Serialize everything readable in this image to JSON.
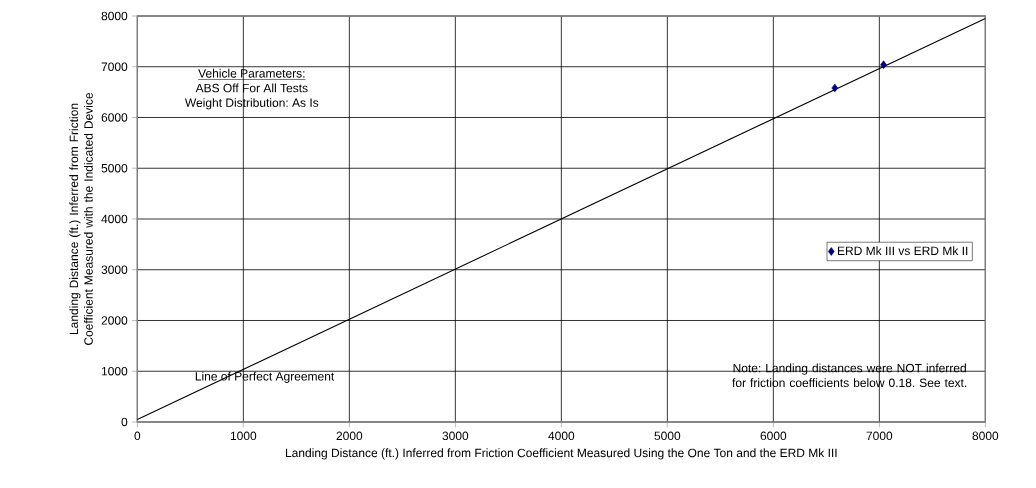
{
  "chart_data": {
    "type": "scatter",
    "xlabel": "Landing Distance (ft.) Inferred from Friction Coefficient Measured Using the One Ton and the ERD Mk III",
    "ylabel": "Landing Distance (ft.) Inferred from Friction Coefficient Measured with the Indicated Device",
    "xlim": [
      0,
      8000
    ],
    "ylim": [
      0,
      8000
    ],
    "xticks": [
      0,
      1000,
      2000,
      3000,
      4000,
      5000,
      6000,
      7000,
      8000
    ],
    "yticks": [
      0,
      1000,
      2000,
      3000,
      4000,
      5000,
      6000,
      7000,
      8000
    ],
    "grid": true,
    "legend": "right",
    "series": [
      {
        "name": "ERD Mk III vs ERD Mk II",
        "marker": "diamond",
        "color": "#000080",
        "x": [
          6580,
          7040
        ],
        "values": [
          6580,
          7040
        ]
      },
      {
        "type": "line",
        "color": "#000000",
        "x": [
          0,
          8000
        ],
        "values": [
          50,
          7950
        ]
      }
    ],
    "annotations": [
      "Vehicle Parameters:",
      "ABS Off  For All Tests",
      "Weight Distribution: As Is",
      "Line of Perfect Agreement",
      "Note: Landing distances were NOT inferred for friction coefficients below 0.18. See text."
    ]
  }
}
